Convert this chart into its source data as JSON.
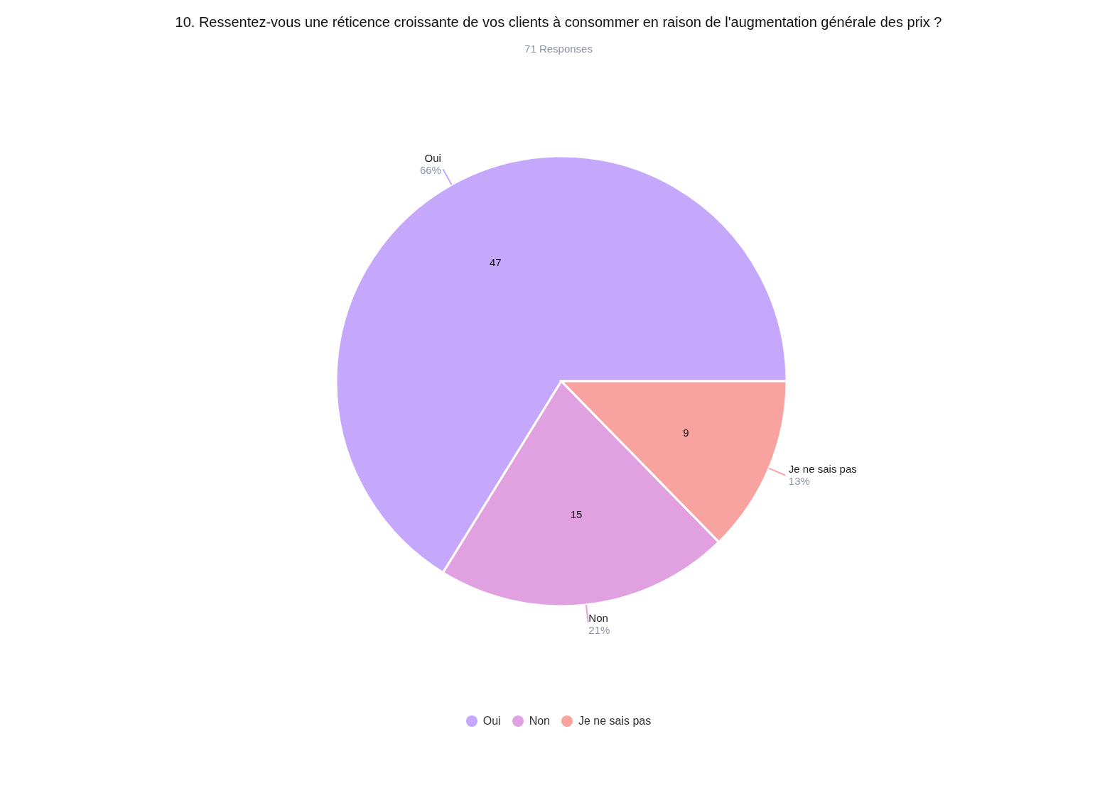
{
  "chart_data": {
    "type": "pie",
    "title": "10. Ressentez-vous une réticence croissante de vos clients à consommer en raison de l'augmentation générale des prix ?",
    "subtitle": "71 Responses",
    "categories": [
      "Oui",
      "Non",
      "Je ne sais pas"
    ],
    "values": [
      47,
      15,
      9
    ],
    "colors": [
      "#c5a8fb",
      "#e1a0e0",
      "#f9a3a0"
    ],
    "annotations": [
      {
        "text": "66%",
        "x": "Oui"
      },
      {
        "text": "21%",
        "x": "Non"
      },
      {
        "text": "13%",
        "x": "Je ne sais pas"
      }
    ],
    "data_labels": true,
    "legend": "bottom"
  }
}
